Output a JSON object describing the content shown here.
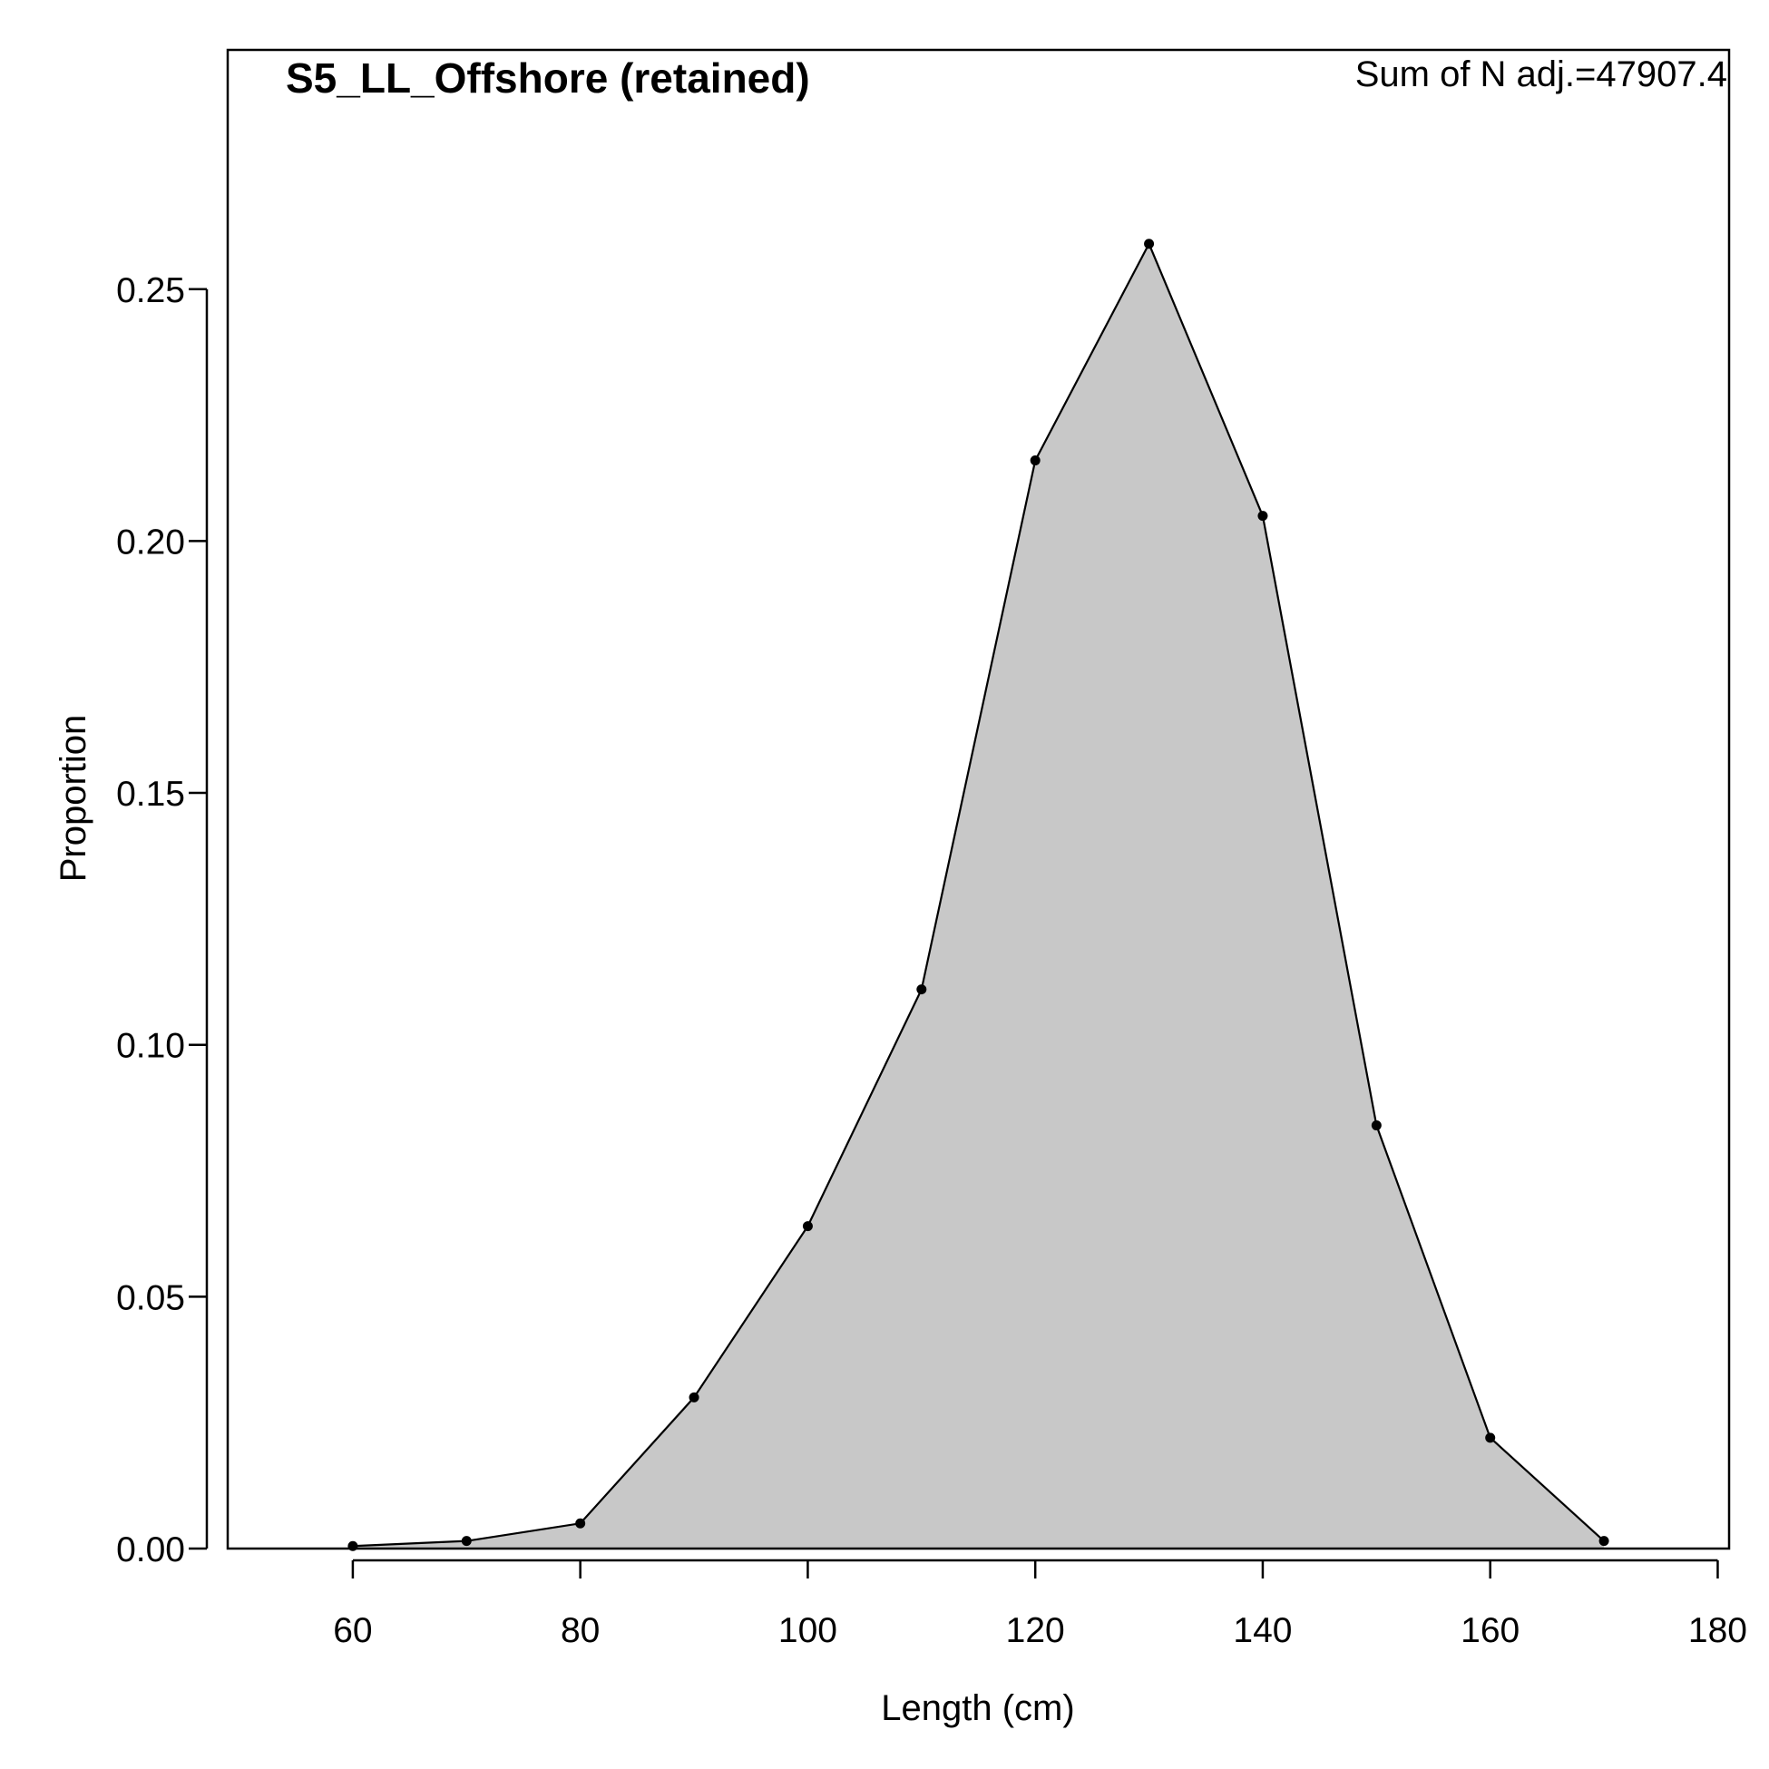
{
  "chart_data": {
    "type": "area",
    "title": "S5_LL_Offshore (retained)",
    "annotation": "Sum of N adj.=47907.4",
    "xlabel": "Length (cm)",
    "ylabel": "Proportion",
    "xlim": [
      49,
      181
    ],
    "ylim": [
      0,
      0.2975
    ],
    "x_ticks": [
      60,
      80,
      100,
      120,
      140,
      160,
      180
    ],
    "x_tick_labels": [
      "60",
      "80",
      "100",
      "120",
      "140",
      "160",
      "180"
    ],
    "y_ticks": [
      0,
      0.05,
      0.1,
      0.15,
      0.2,
      0.25
    ],
    "y_tick_labels": [
      "0.00",
      "0.05",
      "0.10",
      "0.15",
      "0.20",
      "0.25"
    ],
    "grid": false,
    "legend": "none",
    "x": [
      60,
      70,
      80,
      90,
      100,
      110,
      120,
      130,
      140,
      150,
      160,
      170
    ],
    "series": [
      {
        "values": [
          0.0005,
          0.0015,
          0.005,
          0.03,
          0.064,
          0.111,
          0.216,
          0.259,
          0.205,
          0.084,
          0.022,
          0.0015
        ]
      }
    ],
    "colors": {
      "fill": "#c8c8c8",
      "line": "#000000",
      "points": "#000000"
    }
  }
}
